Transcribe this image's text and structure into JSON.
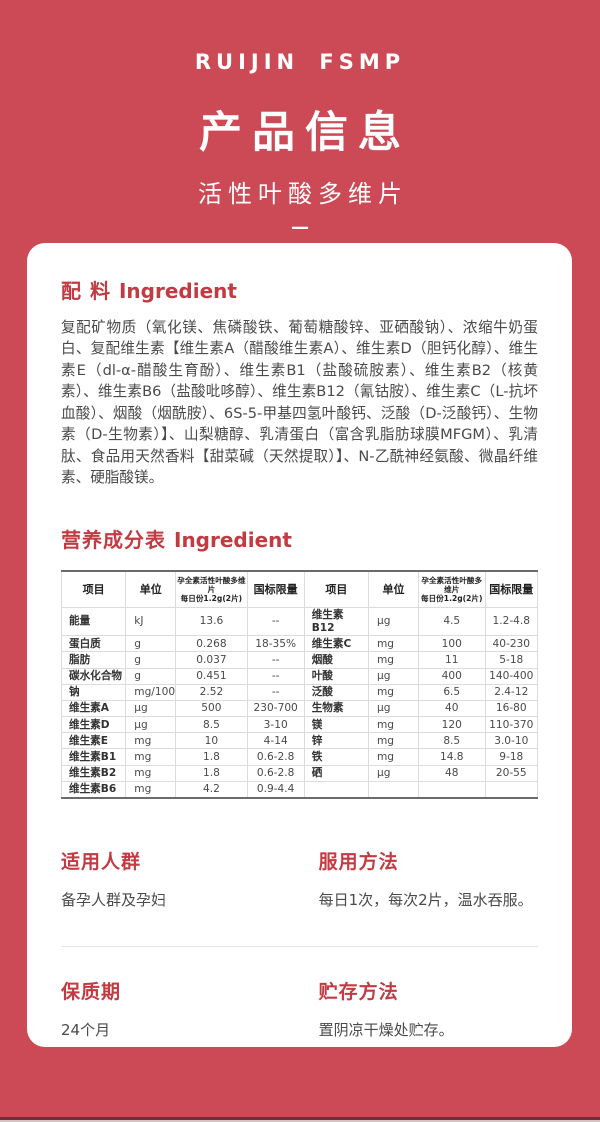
{
  "colors": {
    "background_red": "#cc4a55",
    "card_white": "#ffffff",
    "accent_red": "#c23b42",
    "body_text": "#4a4a4a"
  },
  "header": {
    "brand": "RUIJIN FSMP",
    "title": "产品信息",
    "subtitle": "活性叶酸多维片",
    "dash": "—"
  },
  "ingredient_section": {
    "title_zh": "配 料",
    "title_en": "Ingredient",
    "text": "复配矿物质（氧化镁、焦磷酸铁、葡萄糖酸锌、亚硒酸钠）、浓缩牛奶蛋白、复配维生素【维生素A（醋酸维生素A）、维生素D（胆钙化醇）、维生素E（dl-α-醋酸生育酚）、维生素B1（盐酸硫胺素）、维生素B2（核黄素）、维生素B6（盐酸吡哆醇）、维生素B12（氰钴胺）、维生素C（L-抗坏血酸）、烟酸（烟酰胺）、6S-5-甲基四氢叶酸钙、泛酸（D-泛酸钙）、生物素（D-生物素）】、山梨糖醇、乳清蛋白（富含乳脂肪球膜MFGM）、乳清肽、食品用天然香料【甜菜碱（天然提取）】、N-乙酰神经氨酸、微晶纤维素、硬脂酸镁。"
  },
  "nutrition_section": {
    "title_zh": "营养成分表",
    "title_en": "Ingredient",
    "table": {
      "headers": [
        "项目",
        "单位",
        "孕全素活性叶酸多维片\n每日份1.2g(2片)",
        "国标限量",
        "项目",
        "单位",
        "孕全素活性叶酸多维片\n每日份1.2g(2片)",
        "国标限量"
      ],
      "rows": [
        [
          "能量",
          "kJ",
          "13.6",
          "--",
          "维生素B12",
          "μg",
          "4.5",
          "1.2-4.8"
        ],
        [
          "蛋白质",
          "g",
          "0.268",
          "18-35%",
          "维生素C",
          "mg",
          "100",
          "40-230"
        ],
        [
          "脂肪",
          "g",
          "0.037",
          "--",
          "烟酸",
          "mg",
          "11",
          "5-18"
        ],
        [
          "碳水化合物",
          "g",
          "0.451",
          "--",
          "叶酸",
          "μg",
          "400",
          "140-400"
        ],
        [
          "钠",
          "mg/100g",
          "2.52",
          "--",
          "泛酸",
          "mg",
          "6.5",
          "2.4-12"
        ],
        [
          "维生素A",
          "μg",
          "500",
          "230-700",
          "生物素",
          "μg",
          "40",
          "16-80"
        ],
        [
          "维生素D",
          "μg",
          "8.5",
          "3-10",
          "镁",
          "mg",
          "120",
          "110-370"
        ],
        [
          "维生素E",
          "mg",
          "10",
          "4-14",
          "锌",
          "mg",
          "8.5",
          "3.0-10"
        ],
        [
          "维生素B1",
          "mg",
          "1.8",
          "0.6-2.8",
          "铁",
          "mg",
          "14.8",
          "9-18"
        ],
        [
          "维生素B2",
          "mg",
          "1.8",
          "0.6-2.8",
          "硒",
          "μg",
          "48",
          "20-55"
        ],
        [
          "维生素B6",
          "mg",
          "4.2",
          "0.9-4.4",
          "",
          "",
          "",
          ""
        ]
      ]
    }
  },
  "info_sections": [
    {
      "title": "适用人群",
      "text": "备孕人群及孕妇"
    },
    {
      "title": "服用方法",
      "text": "每日1次，每次2片，温水吞服。"
    },
    {
      "title": "保质期",
      "text": "24个月"
    },
    {
      "title": "贮存方法",
      "text": "置阴凉干燥处贮存。"
    }
  ]
}
